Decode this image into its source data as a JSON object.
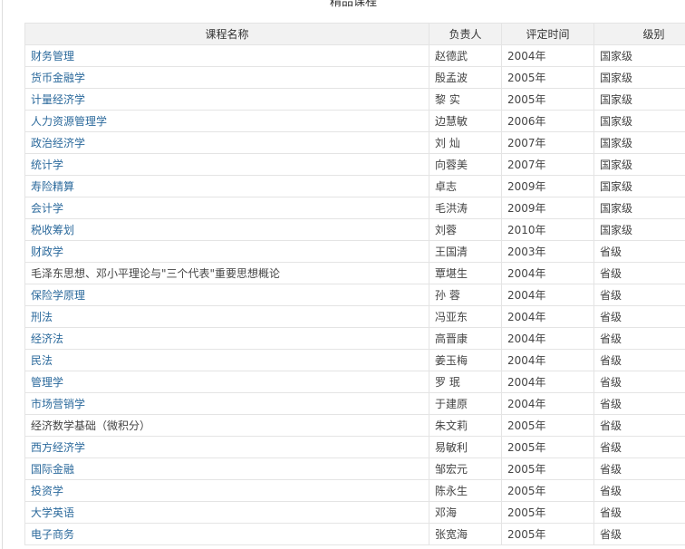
{
  "page_title": "精品课程",
  "table": {
    "headers": [
      "课程名称",
      "负责人",
      "评定时间",
      "级别"
    ],
    "rows": [
      {
        "name": "财务管理",
        "lead": "赵德武",
        "year": "2004年",
        "level": "国家级",
        "link": true
      },
      {
        "name": "货币金融学",
        "lead": "殷孟波",
        "year": "2005年",
        "level": "国家级",
        "link": true
      },
      {
        "name": "计量经济学",
        "lead": "黎 实",
        "year": "2005年",
        "level": "国家级",
        "link": true
      },
      {
        "name": "人力资源管理学",
        "lead": "边慧敏",
        "year": "2006年",
        "level": "国家级",
        "link": true
      },
      {
        "name": "政治经济学",
        "lead": "刘 灿",
        "year": "2007年",
        "level": "国家级",
        "link": true
      },
      {
        "name": "统计学",
        "lead": "向蓉美",
        "year": "2007年",
        "level": "国家级",
        "link": true
      },
      {
        "name": "寿险精算",
        "lead": "卓志",
        "year": "2009年",
        "level": "国家级",
        "link": true
      },
      {
        "name": "会计学",
        "lead": "毛洪涛",
        "year": "2009年",
        "level": "国家级",
        "link": true
      },
      {
        "name": "税收筹划",
        "lead": "刘蓉",
        "year": "2010年",
        "level": "国家级",
        "link": true
      },
      {
        "name": "财政学",
        "lead": "王国清",
        "year": "2003年",
        "level": "省级",
        "link": true
      },
      {
        "name": "毛泽东思想、邓小平理论与\"三个代表\"重要思想概论",
        "lead": "覃堪生",
        "year": "2004年",
        "level": "省级",
        "link": false
      },
      {
        "name": "保险学原理",
        "lead": "孙 蓉",
        "year": "2004年",
        "level": "省级",
        "link": true
      },
      {
        "name": "刑法",
        "lead": "冯亚东",
        "year": "2004年",
        "level": "省级",
        "link": true
      },
      {
        "name": "经济法",
        "lead": "高晋康",
        "year": "2004年",
        "level": "省级",
        "link": true
      },
      {
        "name": "民法",
        "lead": "姜玉梅",
        "year": "2004年",
        "level": "省级",
        "link": true
      },
      {
        "name": "管理学",
        "lead": "罗 珉",
        "year": "2004年",
        "level": "省级",
        "link": true
      },
      {
        "name": "市场营销学",
        "lead": "于建原",
        "year": "2004年",
        "level": "省级",
        "link": true
      },
      {
        "name": "经济数学基础（微积分）",
        "lead": "朱文莉",
        "year": "2005年",
        "level": "省级",
        "link": false
      },
      {
        "name": "西方经济学",
        "lead": "易敏利",
        "year": "2005年",
        "level": "省级",
        "link": true
      },
      {
        "name": "国际金融",
        "lead": "邹宏元",
        "year": "2005年",
        "level": "省级",
        "link": true
      },
      {
        "name": "投资学",
        "lead": "陈永生",
        "year": "2005年",
        "level": "省级",
        "link": true
      },
      {
        "name": "大学英语",
        "lead": "邓海",
        "year": "2005年",
        "level": "省级",
        "link": true
      },
      {
        "name": "电子商务",
        "lead": "张宽海",
        "year": "2005年",
        "level": "省级",
        "link": true
      }
    ]
  },
  "colors": {
    "link": "#2c6a9c",
    "header_bg": "#f2f2f2",
    "border": "#e4e4e4"
  }
}
